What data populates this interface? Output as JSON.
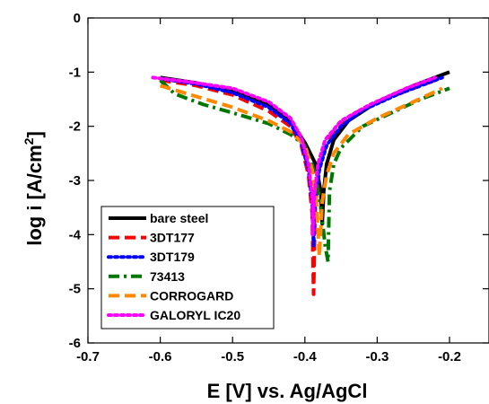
{
  "chart_data": {
    "type": "line",
    "xlabel": "E [V] vs. Ag/AgCl",
    "ylabel_main": "log i [A/cm",
    "ylabel_sup": "2",
    "ylabel_end": "]",
    "xlim": [
      -0.7,
      -0.18
    ],
    "ylim": [
      -6,
      0
    ],
    "xticks": [
      -0.7,
      -0.6,
      -0.5,
      -0.4,
      -0.3,
      -0.2
    ],
    "xtick_labels": [
      "-0.7",
      "-0.6",
      "-0.5",
      "-0.4",
      "-0.3",
      "-0.2"
    ],
    "yticks": [
      0,
      -1,
      -2,
      -3,
      -4,
      -5,
      -6
    ],
    "ytick_labels": [
      "0",
      "-1",
      "-2",
      "-3",
      "-4",
      "-5",
      "-6"
    ],
    "grid": false,
    "legend_position": "bottom-left",
    "series": [
      {
        "name": "bare steel",
        "color": "#000000",
        "dash": "solid",
        "points": [
          [
            -0.6,
            -1.1
          ],
          [
            -0.55,
            -1.2
          ],
          [
            -0.5,
            -1.35
          ],
          [
            -0.45,
            -1.6
          ],
          [
            -0.42,
            -1.9
          ],
          [
            -0.4,
            -2.3
          ],
          [
            -0.385,
            -2.7
          ],
          [
            -0.378,
            -3.2
          ],
          [
            -0.376,
            -3.8
          ],
          [
            -0.374,
            -3.2
          ],
          [
            -0.37,
            -2.7
          ],
          [
            -0.36,
            -2.25
          ],
          [
            -0.34,
            -1.9
          ],
          [
            -0.3,
            -1.55
          ],
          [
            -0.25,
            -1.25
          ],
          [
            -0.2,
            -1.0
          ]
        ]
      },
      {
        "name": "3DT177",
        "color": "#ff0000",
        "dash": "dash",
        "points": [
          [
            -0.6,
            -1.15
          ],
          [
            -0.55,
            -1.25
          ],
          [
            -0.5,
            -1.42
          ],
          [
            -0.45,
            -1.72
          ],
          [
            -0.42,
            -2.0
          ],
          [
            -0.405,
            -2.35
          ],
          [
            -0.395,
            -2.9
          ],
          [
            -0.39,
            -3.6
          ],
          [
            -0.388,
            -5.1
          ],
          [
            -0.386,
            -3.6
          ],
          [
            -0.382,
            -2.9
          ],
          [
            -0.375,
            -2.5
          ],
          [
            -0.36,
            -2.1
          ],
          [
            -0.33,
            -1.75
          ],
          [
            -0.28,
            -1.45
          ],
          [
            -0.22,
            -1.15
          ]
        ]
      },
      {
        "name": "3DT179",
        "color": "#0000ff",
        "dash": "dot",
        "points": [
          [
            -0.6,
            -1.12
          ],
          [
            -0.55,
            -1.22
          ],
          [
            -0.5,
            -1.38
          ],
          [
            -0.45,
            -1.65
          ],
          [
            -0.42,
            -1.95
          ],
          [
            -0.405,
            -2.3
          ],
          [
            -0.395,
            -2.8
          ],
          [
            -0.39,
            -3.4
          ],
          [
            -0.388,
            -4.2
          ],
          [
            -0.386,
            -3.4
          ],
          [
            -0.38,
            -2.8
          ],
          [
            -0.37,
            -2.35
          ],
          [
            -0.35,
            -2.0
          ],
          [
            -0.32,
            -1.7
          ],
          [
            -0.27,
            -1.4
          ],
          [
            -0.21,
            -1.1
          ]
        ]
      },
      {
        "name": "73413",
        "color": "#007700",
        "dash": "dashdot",
        "points": [
          [
            -0.6,
            -1.15
          ],
          [
            -0.58,
            -1.4
          ],
          [
            -0.54,
            -1.6
          ],
          [
            -0.5,
            -1.75
          ],
          [
            -0.45,
            -1.95
          ],
          [
            -0.42,
            -2.15
          ],
          [
            -0.4,
            -2.35
          ],
          [
            -0.385,
            -2.9
          ],
          [
            -0.378,
            -3.5
          ],
          [
            -0.372,
            -4.2
          ],
          [
            -0.368,
            -4.5
          ],
          [
            -0.366,
            -3.2
          ],
          [
            -0.36,
            -2.7
          ],
          [
            -0.35,
            -2.4
          ],
          [
            -0.32,
            -2.0
          ],
          [
            -0.28,
            -1.75
          ],
          [
            -0.24,
            -1.5
          ],
          [
            -0.2,
            -1.3
          ]
        ]
      },
      {
        "name": "CORROGARD",
        "color": "#ff8800",
        "dash": "dash",
        "points": [
          [
            -0.6,
            -1.25
          ],
          [
            -0.55,
            -1.45
          ],
          [
            -0.5,
            -1.65
          ],
          [
            -0.45,
            -1.9
          ],
          [
            -0.42,
            -2.1
          ],
          [
            -0.4,
            -2.35
          ],
          [
            -0.39,
            -2.8
          ],
          [
            -0.384,
            -3.4
          ],
          [
            -0.38,
            -4.4
          ],
          [
            -0.376,
            -3.4
          ],
          [
            -0.37,
            -2.9
          ],
          [
            -0.36,
            -2.5
          ],
          [
            -0.34,
            -2.15
          ],
          [
            -0.3,
            -1.85
          ],
          [
            -0.25,
            -1.55
          ],
          [
            -0.21,
            -1.3
          ]
        ]
      },
      {
        "name": "GALORYL IC20",
        "color": "#ff00ff",
        "dash": "dot",
        "points": [
          [
            -0.61,
            -1.1
          ],
          [
            -0.56,
            -1.18
          ],
          [
            -0.5,
            -1.3
          ],
          [
            -0.45,
            -1.55
          ],
          [
            -0.42,
            -1.85
          ],
          [
            -0.405,
            -2.2
          ],
          [
            -0.395,
            -2.7
          ],
          [
            -0.39,
            -3.3
          ],
          [
            -0.389,
            -4.0
          ],
          [
            -0.387,
            -3.3
          ],
          [
            -0.382,
            -2.7
          ],
          [
            -0.372,
            -2.25
          ],
          [
            -0.35,
            -1.9
          ],
          [
            -0.31,
            -1.6
          ],
          [
            -0.26,
            -1.3
          ],
          [
            -0.22,
            -1.1
          ]
        ]
      }
    ]
  }
}
